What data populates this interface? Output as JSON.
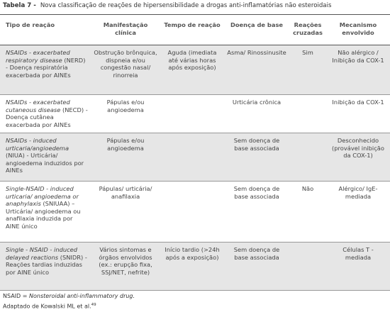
{
  "caption": {
    "label": "Tabela 7 -",
    "text": "Nova classificação de reações de hipersensibilidade a drogas anti-inflamatórias não esteroidais"
  },
  "table": {
    "headers": [
      "Tipo de reação",
      "Manifestação clínica",
      "Tempo de reação",
      "Doença de base",
      "Reações cruzadas",
      "Mecanismo envolvido"
    ],
    "rows": [
      {
        "type": {
          "italic": "NSAIDs - exacerbated respiratory disease",
          "text": "(NERD) - Doença respiratória exacerbada por AINEs"
        },
        "cells": [
          "Obstrução brônquica, dispneia e/ou congestão nasal/ rinorreia",
          "Aguda (imediata até várias horas após exposição)",
          "Asma/ Rinossinusite",
          "Sim",
          "Não alérgico / Inibição da COX-1"
        ]
      },
      {
        "type": {
          "italic": "NSAIDs - exacerbated cutaneous disease",
          "text": "(NECD) - Doença cutânea exacerbada por AINEs"
        },
        "cells": [
          "Pápulas e/ou angioedema",
          null,
          "Urticária crônica",
          null,
          "Inibição da COX-1"
        ]
      },
      {
        "type": {
          "italic": "NSAIDs - induced urticaria/angioedema",
          "text": "(NIUA) - Urticária/ angioedema induzidos por AINEs"
        },
        "cells": [
          "Pápulas e/ou angioedema",
          null,
          "Sem doença de base associada",
          null,
          "Desconhecido (provável inibição da COX-1)"
        ]
      },
      {
        "type": {
          "italic": "Single-NSAID - induced urticaria/ angioedema or anaphylaxis",
          "text": "(SNIUAA) – Urticária/ angioedema ou anafilaxia induzida por AINE único"
        },
        "cells": [
          "Pápulas/ urticária/ anafilaxia",
          null,
          "Sem doença de base associada",
          "Não",
          "Alérgico/ IgE-mediada"
        ]
      },
      {
        "type": {
          "italic": "Single - NSAID - induced delayed reactions",
          "text": "(SNIDR) - Reações tardias induzidas por AINE único"
        },
        "cells": [
          "Vários sintomas e órgãos envolvidos (ex.: erupção fixa, SSJ/NET, nefrite)",
          "Início tardio (>24h após a exposição)",
          "Sem doença de base associada",
          null,
          "Células T - mediada"
        ]
      }
    ]
  },
  "footnotes": {
    "abbr": "NSAID =",
    "abbr_text": "Nonsteroidal anti-inflammatory drug.",
    "source": "Adaptado de Kowalski ML et al.",
    "ref": "49"
  }
}
